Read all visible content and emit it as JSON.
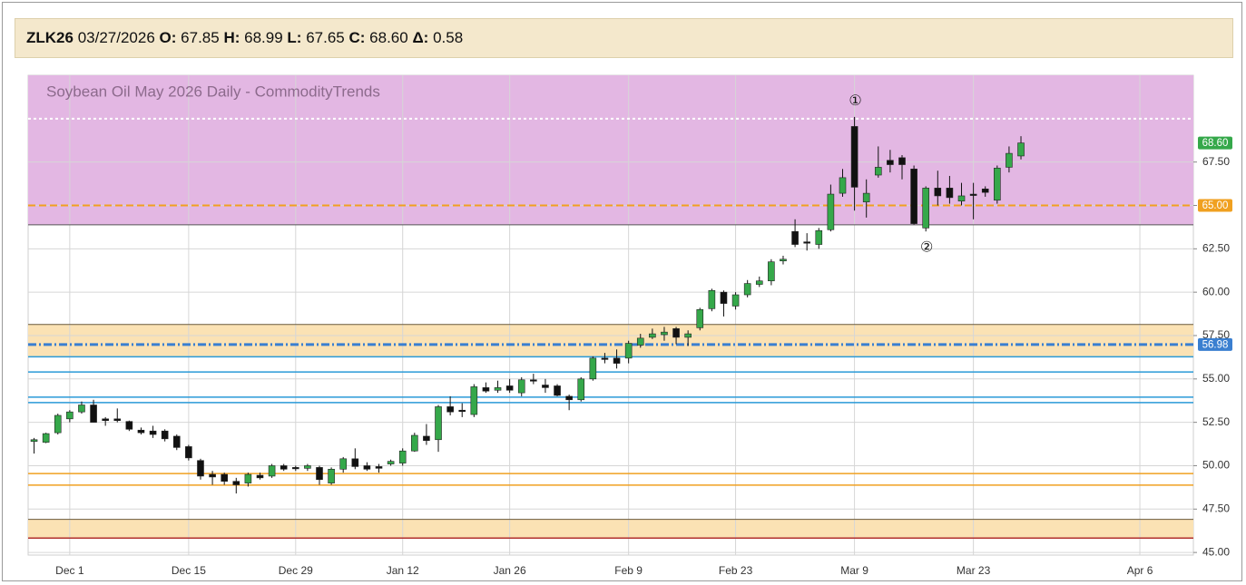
{
  "header": {
    "symbol": "ZLK26",
    "date": "03/27/2026",
    "fields": [
      {
        "label": "O:",
        "value": "67.85"
      },
      {
        "label": "H:",
        "value": "68.99"
      },
      {
        "label": "L:",
        "value": "67.65"
      },
      {
        "label": "C:",
        "value": "68.60"
      },
      {
        "label": "Δ:",
        "value": "0.58"
      }
    ]
  },
  "chart_data": {
    "type": "candlestick",
    "title": "Soybean Oil May 2026 Daily - CommodityTrends",
    "categories": [
      null,
      null,
      null,
      "Dec 1",
      null,
      null,
      null,
      null,
      null,
      null,
      null,
      null,
      null,
      "Dec 15",
      null,
      null,
      null,
      null,
      null,
      null,
      null,
      null,
      "Dec 29",
      null,
      null,
      null,
      null,
      null,
      null,
      null,
      null,
      "Jan 12",
      null,
      null,
      null,
      null,
      null,
      null,
      null,
      null,
      "Jan 26",
      null,
      null,
      null,
      null,
      null,
      null,
      null,
      null,
      null,
      "Feb 9",
      null,
      null,
      null,
      null,
      null,
      null,
      null,
      null,
      "Feb 23",
      null,
      null,
      null,
      null,
      null,
      null,
      null,
      null,
      null,
      "Mar 9",
      null,
      null,
      null,
      null,
      null,
      null,
      null,
      null,
      null,
      "Mar 23",
      null,
      null,
      null,
      null,
      null,
      null,
      null,
      null,
      null,
      null,
      null,
      null,
      null,
      "Apr 6",
      null,
      null,
      null,
      null
    ],
    "open": [
      51.4,
      51.35,
      51.9,
      52.7,
      53.1,
      53.5,
      52.7,
      52.7,
      52.55,
      52.05,
      52.0,
      52.0,
      51.7,
      51.1,
      50.3,
      49.5,
      49.5,
      49.1,
      49.0,
      49.45,
      49.4,
      50.0,
      49.9,
      49.85,
      49.9,
      49.0,
      49.8,
      50.4,
      50.0,
      49.95,
      50.1,
      50.15,
      50.85,
      51.7,
      51.5,
      53.4,
      53.2,
      52.95,
      54.5,
      54.35,
      54.6,
      54.2,
      54.95,
      54.65,
      54.6,
      54.0,
      53.8,
      55.0,
      56.2,
      56.2,
      56.2,
      56.95,
      57.4,
      57.55,
      57.9,
      57.4,
      57.95,
      59.05,
      60.0,
      59.2,
      59.85,
      60.45,
      60.65,
      61.8,
      63.5,
      62.9,
      62.75,
      63.6,
      65.7,
      69.55,
      65.2,
      66.75,
      67.6,
      67.75,
      67.1,
      63.7,
      66.0,
      66.0,
      65.25,
      65.65,
      65.95,
      65.3,
      67.2,
      67.85,
      null,
      null,
      null,
      null,
      null,
      null,
      null,
      null,
      null,
      null,
      null,
      null,
      null,
      null
    ],
    "high": [
      51.6,
      51.9,
      53.0,
      53.2,
      53.7,
      53.8,
      52.8,
      53.3,
      52.6,
      52.2,
      52.3,
      52.1,
      51.8,
      51.2,
      50.4,
      49.7,
      49.6,
      49.3,
      49.6,
      49.6,
      50.1,
      50.1,
      50.0,
      50.1,
      50.0,
      49.9,
      50.5,
      51.0,
      50.2,
      50.1,
      50.35,
      51.0,
      51.9,
      52.4,
      53.5,
      54.0,
      53.6,
      54.7,
      54.8,
      54.9,
      55.0,
      55.1,
      55.3,
      55.0,
      54.7,
      54.1,
      55.1,
      56.3,
      56.5,
      56.7,
      57.2,
      57.6,
      57.9,
      58.0,
      58.0,
      57.8,
      59.1,
      60.2,
      60.1,
      60.0,
      60.7,
      60.9,
      61.9,
      62.1,
      64.2,
      63.4,
      63.7,
      66.2,
      67.1,
      70.1,
      66.5,
      68.4,
      68.2,
      67.9,
      67.3,
      66.1,
      67.0,
      66.7,
      66.3,
      66.3,
      66.1,
      67.3,
      68.4,
      68.99,
      null,
      null,
      null,
      null,
      null,
      null,
      null,
      null,
      null,
      null,
      null,
      null,
      null,
      null
    ],
    "low": [
      50.7,
      51.3,
      51.8,
      52.5,
      53.0,
      52.5,
      52.3,
      52.5,
      52.0,
      51.8,
      51.6,
      51.4,
      50.9,
      50.3,
      49.2,
      48.9,
      48.9,
      48.4,
      48.8,
      49.2,
      49.3,
      49.7,
      49.7,
      49.7,
      48.9,
      48.9,
      49.6,
      49.8,
      49.7,
      49.6,
      50.0,
      50.0,
      50.8,
      51.2,
      50.8,
      52.9,
      52.8,
      52.8,
      54.2,
      54.2,
      54.2,
      54.0,
      54.7,
      54.2,
      54.0,
      53.2,
      53.7,
      54.9,
      55.9,
      55.6,
      55.9,
      56.8,
      57.3,
      57.2,
      57.0,
      56.9,
      57.8,
      58.9,
      58.6,
      59.0,
      59.7,
      60.3,
      60.4,
      61.6,
      62.6,
      62.4,
      62.5,
      63.5,
      65.5,
      64.7,
      64.3,
      66.6,
      66.9,
      66.5,
      63.9,
      63.5,
      65.0,
      65.1,
      65.0,
      64.2,
      65.5,
      65.1,
      66.9,
      67.65,
      null,
      null,
      null,
      null,
      null,
      null,
      null,
      null,
      null,
      null,
      null,
      null,
      null,
      null
    ],
    "close": [
      51.5,
      51.85,
      52.9,
      53.1,
      53.5,
      52.5,
      52.6,
      52.6,
      52.1,
      51.9,
      51.8,
      51.55,
      51.05,
      50.45,
      49.4,
      49.35,
      49.1,
      48.9,
      49.5,
      49.3,
      50.0,
      49.8,
      49.85,
      50.0,
      49.2,
      49.8,
      50.4,
      49.95,
      49.8,
      49.85,
      50.25,
      50.85,
      51.75,
      51.45,
      53.4,
      53.1,
      53.15,
      54.55,
      54.3,
      54.5,
      54.35,
      54.95,
      54.9,
      54.5,
      54.05,
      53.8,
      55.0,
      56.2,
      56.15,
      55.9,
      57.05,
      57.35,
      57.6,
      57.7,
      57.4,
      57.6,
      59.0,
      60.1,
      59.35,
      59.85,
      60.5,
      60.65,
      61.75,
      61.9,
      62.75,
      62.85,
      63.55,
      65.65,
      66.6,
      66.05,
      65.7,
      67.2,
      67.35,
      67.35,
      63.95,
      66.0,
      65.55,
      65.45,
      65.55,
      65.6,
      65.75,
      67.15,
      68.0,
      68.6,
      null,
      null,
      null,
      null,
      null,
      null,
      null,
      null,
      null,
      null,
      null,
      null,
      null,
      null
    ],
    "up_color": "#35a84a",
    "down_color": "#111111",
    "ylim": [
      44.85,
      72.5
    ],
    "yticks": [
      {
        "value": 45,
        "label": "45.00"
      },
      {
        "value": 47.5,
        "label": "47.50"
      },
      {
        "value": 50,
        "label": "50.00"
      },
      {
        "value": 52.5,
        "label": "52.50"
      },
      {
        "value": 55,
        "label": "55.00"
      },
      {
        "value": 57.5,
        "label": "57.50"
      },
      {
        "value": 60,
        "label": "60.00"
      },
      {
        "value": 62.5,
        "label": "62.50"
      },
      {
        "value": 65,
        "label": "65.00"
      },
      {
        "value": 67.5,
        "label": "67.50"
      }
    ],
    "grid": true,
    "zones": [
      {
        "from": 63.88,
        "to": 72.5,
        "color": "#e3b7e3"
      },
      {
        "from": 56.28,
        "to": 58.14,
        "color": "#fbe2b4"
      },
      {
        "from": 45.78,
        "to": 46.91,
        "color": "#fbe2b4"
      }
    ],
    "hlines": [
      {
        "value": 70.0,
        "color": "#ffffff",
        "style": "dotted",
        "width": 2
      },
      {
        "value": 65.0,
        "color": "#f0a020",
        "style": "dashed",
        "width": 2
      },
      {
        "value": 63.88,
        "color": "#555555",
        "style": "solid",
        "width": 1
      },
      {
        "value": 58.14,
        "color": "#6b5a3a",
        "style": "solid",
        "width": 1
      },
      {
        "value": 56.98,
        "color": "#3a7fd0",
        "style": "dashdot",
        "width": 3
      },
      {
        "value": 56.28,
        "color": "#2a9ad8",
        "style": "solid",
        "width": 1.5
      },
      {
        "value": 55.4,
        "color": "#2a9ad8",
        "style": "solid",
        "width": 1.5
      },
      {
        "value": 53.95,
        "color": "#2a9ad8",
        "style": "solid",
        "width": 1.5
      },
      {
        "value": 53.64,
        "color": "#2a9ad8",
        "style": "solid",
        "width": 1.5
      },
      {
        "value": 49.55,
        "color": "#f0a020",
        "style": "solid",
        "width": 1.5
      },
      {
        "value": 48.88,
        "color": "#f0a020",
        "style": "solid",
        "width": 1.5
      },
      {
        "value": 46.91,
        "color": "#6b5a3a",
        "style": "solid",
        "width": 1
      },
      {
        "value": 45.83,
        "color": "#b03030",
        "style": "solid",
        "width": 1.5
      }
    ],
    "price_labels": [
      {
        "value": 68.6,
        "label": "68.60",
        "color": "#35a84a"
      },
      {
        "value": 65.0,
        "label": "65.00",
        "color": "#f0a020"
      },
      {
        "value": 56.98,
        "label": "56.98",
        "color": "#3a7fd0"
      }
    ],
    "annotations": [
      {
        "text": "①",
        "index": 69,
        "position": "above"
      },
      {
        "text": "②",
        "index": 75,
        "position": "below"
      }
    ]
  }
}
